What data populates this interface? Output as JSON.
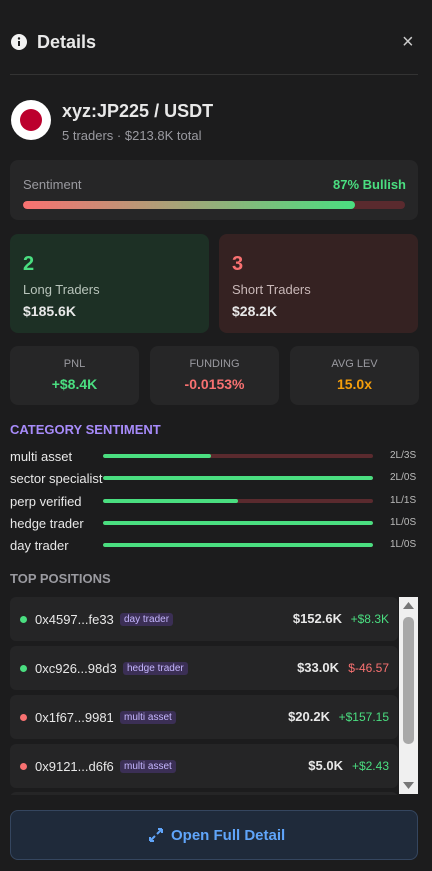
{
  "header": {
    "title": "Details",
    "close": "×"
  },
  "asset": {
    "name": "xyz:JP225 / USDT",
    "subtitle": "5 traders · $213.8K total"
  },
  "sentiment": {
    "label": "Sentiment",
    "value_label": "87% Bullish",
    "value": 87
  },
  "long": {
    "count": "2",
    "label": "Long Traders",
    "amount": "$185.6K"
  },
  "short": {
    "count": "3",
    "label": "Short Traders",
    "amount": "$28.2K"
  },
  "stats": [
    {
      "label": "PNL",
      "value": "+$8.4K",
      "color": "#4ade80"
    },
    {
      "label": "FUNDING",
      "value": "-0.0153%",
      "color": "#f87171"
    },
    {
      "label": "AVG LEV",
      "value": "15.0x",
      "color": "#f59e0b"
    }
  ],
  "category_sentiment": {
    "title": "CATEGORY SENTIMENT",
    "rows": [
      {
        "name": "multi asset",
        "label": "2L/3S",
        "long": 2,
        "short": 3
      },
      {
        "name": "sector specialist",
        "label": "2L/0S",
        "long": 2,
        "short": 0
      },
      {
        "name": "perp verified",
        "label": "1L/1S",
        "long": 1,
        "short": 1
      },
      {
        "name": "hedge trader",
        "label": "1L/0S",
        "long": 1,
        "short": 0
      },
      {
        "name": "day trader",
        "label": "1L/0S",
        "long": 1,
        "short": 0
      }
    ]
  },
  "top_positions": {
    "title": "TOP POSITIONS",
    "rows": [
      {
        "address": "0x4597...fe33",
        "tag": "day trader",
        "size": "$152.6K",
        "pnl": "+$8.3K",
        "dot_color": "#4ade80",
        "pnl_color": "#4ade80"
      },
      {
        "address": "0xc926...98d3",
        "tag": "hedge trader",
        "size": "$33.0K",
        "pnl": "$-46.57",
        "dot_color": "#4ade80",
        "pnl_color": "#f87171"
      },
      {
        "address": "0x1f67...9981",
        "tag": "multi asset",
        "size": "$20.2K",
        "pnl": "+$157.15",
        "dot_color": "#f87171",
        "pnl_color": "#4ade80"
      },
      {
        "address": "0x9121...d6f6",
        "tag": "multi asset",
        "size": "$5.0K",
        "pnl": "+$2.43",
        "dot_color": "#f87171",
        "pnl_color": "#4ade80"
      }
    ]
  },
  "button": {
    "label": "Open Full Detail"
  }
}
